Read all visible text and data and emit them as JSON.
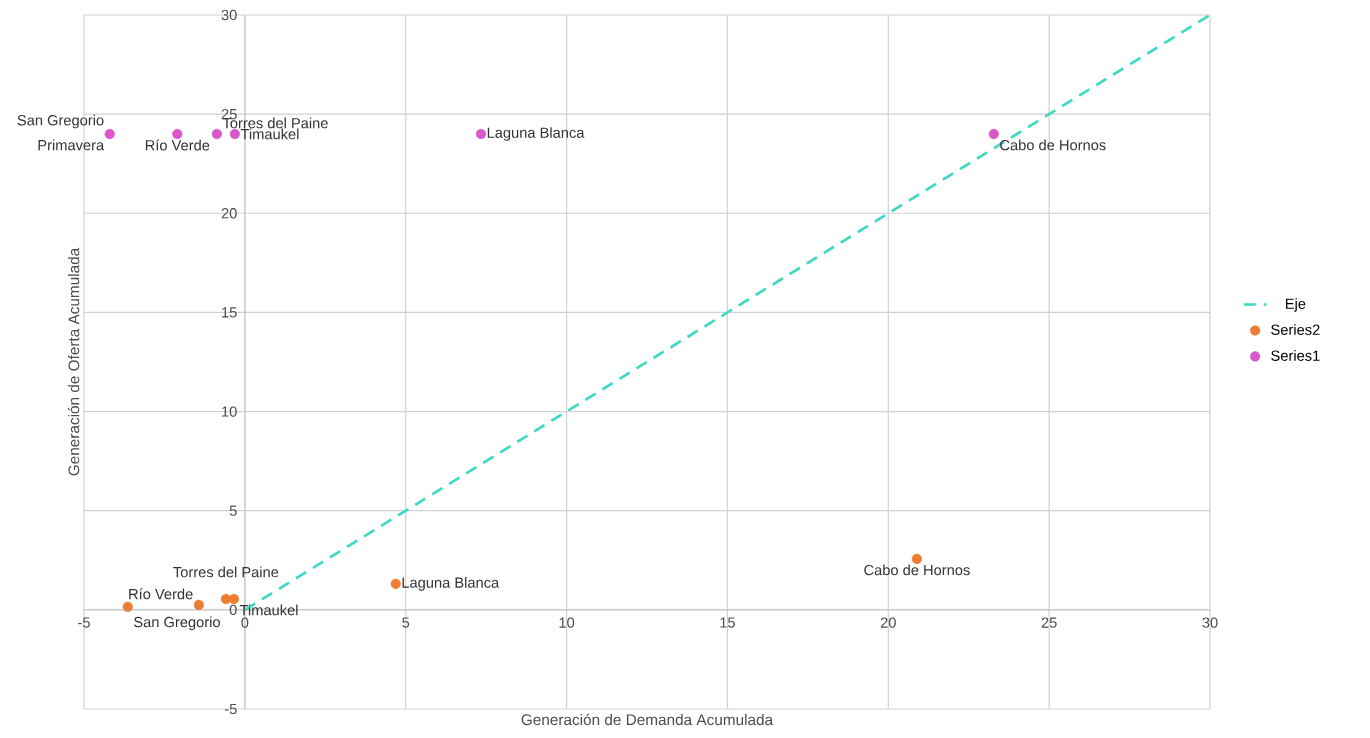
{
  "chart_data": {
    "type": "scatter",
    "xlabel": "Generación de Demanda Acumulada",
    "ylabel": "Generación de Oferta Acumulada",
    "xlim": [
      -5,
      30
    ],
    "ylim": [
      -5,
      30
    ],
    "xticks": [
      -5,
      0,
      5,
      10,
      15,
      20,
      25,
      30
    ],
    "yticks": [
      -5,
      0,
      5,
      10,
      15,
      20,
      25,
      30
    ],
    "grid": true,
    "legend": "right",
    "marker": "circle",
    "series": [
      {
        "name": "Eje",
        "type": "line",
        "color": "#3dd9c1",
        "line_style": "dashed",
        "marker": "none",
        "x": [
          0,
          30
        ],
        "values": [
          0,
          30
        ]
      },
      {
        "name": "Series2",
        "color": "#ed7d31",
        "x": [
          -3.64,
          -1.43,
          -0.59,
          -0.34,
          4.69,
          20.89
        ],
        "values": [
          0.15,
          0.25,
          0.55,
          0.55,
          1.31,
          2.57
        ]
      },
      {
        "name": "Series1",
        "color": "#d957c8",
        "x": [
          -4.2,
          -2.1,
          -0.87,
          -0.31,
          7.34,
          23.28
        ],
        "values": [
          24,
          24,
          24,
          24,
          24,
          24
        ]
      }
    ],
    "annotations": [
      {
        "text": "San Gregorio",
        "x": -4.2,
        "y": 24
      },
      {
        "text": "Primavera",
        "x": -4.2,
        "y": 24
      },
      {
        "text": "Río Verde",
        "x": -2.1,
        "y": 24
      },
      {
        "text": "Torres del Paine",
        "x": -0.87,
        "y": 24
      },
      {
        "text": "Timaukel",
        "x": -0.31,
        "y": 24
      },
      {
        "text": "Laguna Blanca",
        "x": 7.34,
        "y": 24
      },
      {
        "text": "Cabo de Hornos",
        "x": 23.28,
        "y": 24
      },
      {
        "text": "San Gregorio",
        "x": -3.64,
        "y": 0.15
      },
      {
        "text": "Río Verde",
        "x": -1.43,
        "y": 0.25
      },
      {
        "text": "Torres del Paine",
        "x": -0.59,
        "y": 0.55
      },
      {
        "text": "Timaukel",
        "x": -0.34,
        "y": 0.55
      },
      {
        "text": "Laguna Blanca",
        "x": 4.69,
        "y": 1.31
      },
      {
        "text": "Cabo de Hornos",
        "x": 20.89,
        "y": 2.57
      }
    ]
  }
}
